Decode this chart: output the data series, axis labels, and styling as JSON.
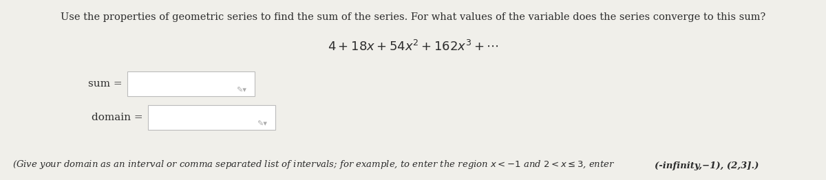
{
  "bg_color": "#f0efea",
  "text_color": "#2c2c2c",
  "instruction_text": "Use the properties of geometric series to find the sum of the series. For what values of the variable does the series converge to this sum?",
  "series_latex": "$4 + 18x + 54x^2 + 162x^3 + \\cdots$",
  "sum_label": "sum =",
  "domain_label": "domain =",
  "hint_normal": "(Give your domain as an interval or comma separated list of intervals; for example, to enter the region $x < -1$ and $2 < x \\leq 3$, enter ",
  "hint_bold": "(-infinity,−1), (2,3].)",
  "box_color": "#ffffff",
  "box_edge_color": "#bbbbbb",
  "pencil_color": "#aaaaaa",
  "instruction_fontsize": 10.5,
  "series_fontsize": 13,
  "label_fontsize": 11,
  "hint_fontsize": 9.5
}
